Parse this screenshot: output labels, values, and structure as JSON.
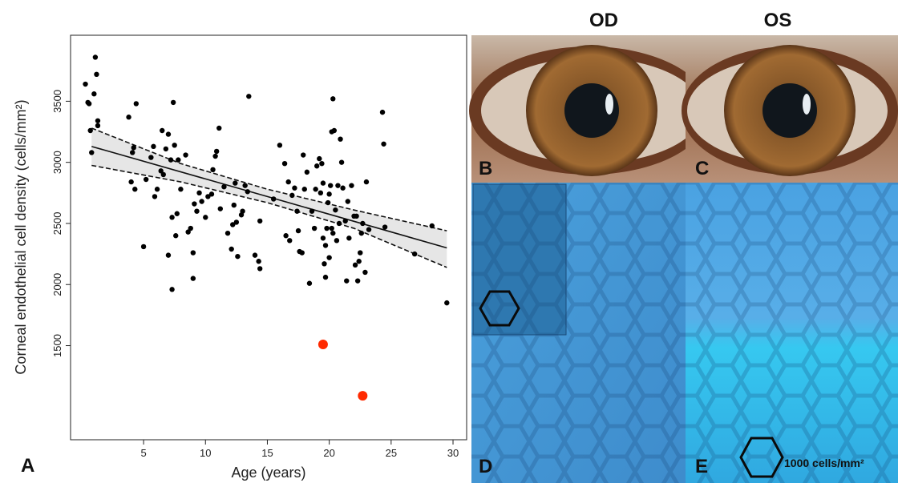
{
  "chart_data": {
    "type": "scatter",
    "panel_label": "A",
    "x_label": "Age (years)",
    "y_label": "Corneal endothelial cell density (cells/mm²)",
    "xlim": [
      -0.9,
      31.1
    ],
    "ylim": [
      730,
      4040
    ],
    "xticks": [
      5,
      10,
      15,
      20,
      25,
      30
    ],
    "yticks": [
      1500,
      2000,
      2500,
      3000,
      3500
    ],
    "series": [
      {
        "color": "#000000",
        "x": [
          0.3,
          0.5,
          0.6,
          0.7,
          0.8,
          1.0,
          1.1,
          1.2,
          1.3,
          1.3,
          3.8,
          4.0,
          4.1,
          4.2,
          4.3,
          4.4,
          5.0,
          5.2,
          5.6,
          5.8,
          5.9,
          6.1,
          6.4,
          6.5,
          6.6,
          6.8,
          7.0,
          7.0,
          7.2,
          7.3,
          7.3,
          7.4,
          7.5,
          7.6,
          7.7,
          7.8,
          8.0,
          8.4,
          8.6,
          8.8,
          9.0,
          9.0,
          9.1,
          9.3,
          9.5,
          9.7,
          10.0,
          10.2,
          10.5,
          10.6,
          10.8,
          10.9,
          11.1,
          11.2,
          11.5,
          11.8,
          12.1,
          12.2,
          12.3,
          12.4,
          12.5,
          12.6,
          12.9,
          13.0,
          13.2,
          13.4,
          13.5,
          14.0,
          14.3,
          14.4,
          14.4,
          15.5,
          16.0,
          16.4,
          16.5,
          16.7,
          16.8,
          17.0,
          17.2,
          17.4,
          17.5,
          17.6,
          17.8,
          17.9,
          18.0,
          18.2,
          18.4,
          18.6,
          18.8,
          18.9,
          19.0,
          19.2,
          19.3,
          19.4,
          19.5,
          19.5,
          19.6,
          19.7,
          19.7,
          19.8,
          19.9,
          20.0,
          20.0,
          20.1,
          20.2,
          20.2,
          20.3,
          20.3,
          20.4,
          20.5,
          20.6,
          20.7,
          20.8,
          20.9,
          21.0,
          21.1,
          21.3,
          21.4,
          21.5,
          21.6,
          21.8,
          22.0,
          22.1,
          22.2,
          22.3,
          22.4,
          22.5,
          22.6,
          22.7,
          22.9,
          23.0,
          23.2,
          24.3,
          24.4,
          24.5,
          26.9,
          28.3,
          29.5
        ],
        "values": [
          3640,
          3490,
          3480,
          3260,
          3080,
          3560,
          3860,
          3720,
          3340,
          3300,
          3370,
          2840,
          3080,
          3120,
          2780,
          3480,
          2310,
          2860,
          3040,
          3130,
          2720,
          2780,
          2930,
          3260,
          2900,
          3110,
          3230,
          2240,
          3020,
          2550,
          1960,
          3490,
          3140,
          2400,
          2580,
          3020,
          2780,
          3060,
          2430,
          2460,
          2260,
          2050,
          2660,
          2600,
          2750,
          2680,
          2550,
          2720,
          2740,
          2940,
          3050,
          3090,
          3280,
          2620,
          2800,
          2420,
          2290,
          2490,
          2650,
          2830,
          2510,
          2230,
          2570,
          2600,
          2810,
          2760,
          3540,
          2240,
          2190,
          2520,
          2130,
          2700,
          3140,
          2990,
          2400,
          2840,
          2360,
          2730,
          2790,
          2600,
          2440,
          2270,
          2260,
          3060,
          2780,
          2920,
          2010,
          2600,
          2460,
          2780,
          2970,
          3030,
          2750,
          2990,
          2830,
          2380,
          2170,
          2060,
          2320,
          2460,
          2670,
          2740,
          2220,
          2810,
          3250,
          2460,
          2420,
          3520,
          3260,
          2610,
          2360,
          2810,
          2500,
          3190,
          3000,
          2790,
          2520,
          2030,
          2680,
          2380,
          2810,
          2560,
          2160,
          2560,
          2030,
          2190,
          2260,
          2420,
          2500,
          2100,
          2840,
          2450,
          3410,
          3150,
          2470,
          2250,
          2480,
          1850
        ]
      },
      {
        "color": "#ff2a00",
        "x": [
          19.5,
          22.7
        ],
        "values": [
          1510,
          1090
        ]
      }
    ],
    "fit": {
      "x": [
        0.8,
        15,
        29.5
      ],
      "values": [
        3130,
        2720,
        2300
      ]
    },
    "ci_upper": {
      "x": [
        0.8,
        8,
        15,
        22,
        29.5
      ],
      "values": [
        3280,
        2990,
        2780,
        2610,
        2440
      ]
    },
    "ci_lower": {
      "x": [
        0.8,
        8,
        15,
        22,
        29.5
      ],
      "values": [
        2975,
        2840,
        2670,
        2460,
        2140
      ]
    }
  },
  "photos": {
    "columns": [
      "OD",
      "OS"
    ],
    "labels": [
      "B",
      "C",
      "D",
      "E"
    ],
    "scale_label": "1000 cells/mm²"
  }
}
